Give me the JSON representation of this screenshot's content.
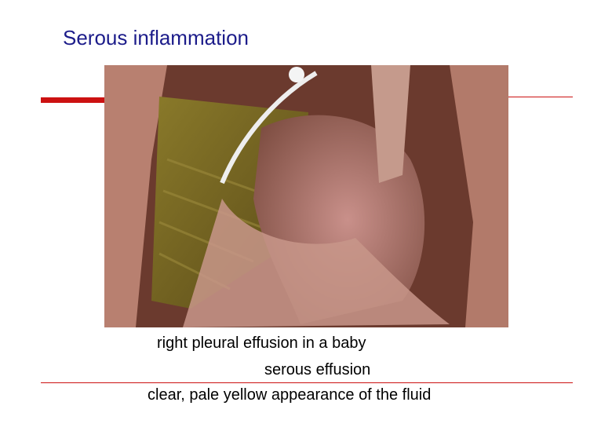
{
  "header": {
    "title": "Serous inflammation"
  },
  "figure": {
    "captions": [
      "right pleural effusion in a baby",
      "serous effusion",
      "clear, pale yellow appearance of the fluid"
    ]
  }
}
